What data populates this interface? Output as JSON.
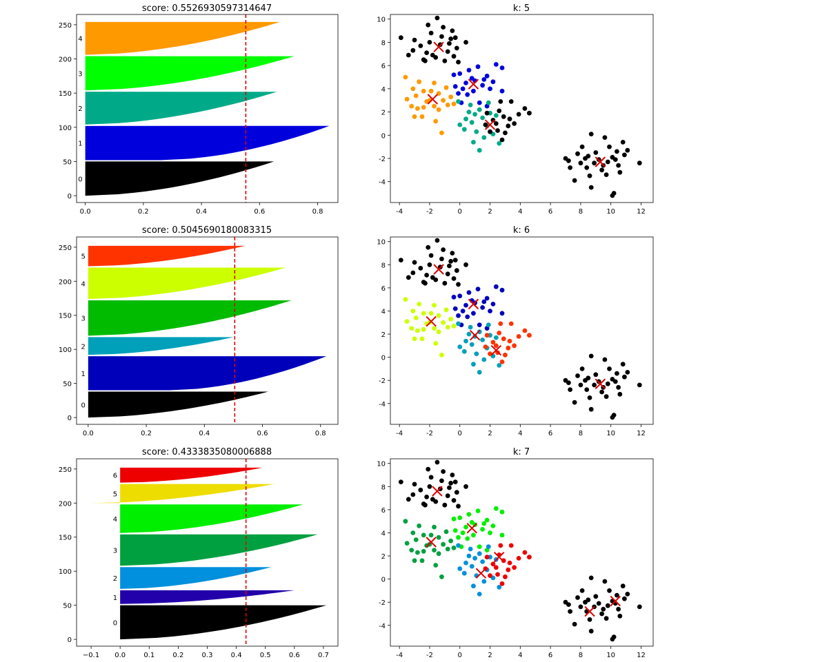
{
  "colors": {
    "k5": [
      "#000000",
      "#0000dd",
      "#00aa88",
      "#00ff00",
      "#ff9900"
    ],
    "k6": [
      "#000000",
      "#0000bb",
      "#00a0bb",
      "#00bb00",
      "#ccff00",
      "#ff3300"
    ],
    "k7": [
      "#000000",
      "#2200aa",
      "#0090dd",
      "#00a040",
      "#00ee00",
      "#eedd00",
      "#ee0000"
    ],
    "centroid": "#dd0000",
    "threshold": "#dd0000"
  },
  "chart_data": [
    {
      "type": "silhouette",
      "title": "score: 0.5526930597314647",
      "score": 0.5526930597314647,
      "xlim": [
        -0.03,
        0.87
      ],
      "ylim": [
        -10,
        265
      ],
      "xticks": [
        "0.0",
        "0.2",
        "0.4",
        "0.6",
        "0.8"
      ],
      "yticks": [
        "0",
        "50",
        "100",
        "150",
        "200",
        "250"
      ],
      "clusters": [
        {
          "label": "0",
          "start": 0,
          "size": 50,
          "max": 0.65,
          "min": 0.0
        },
        {
          "label": "1",
          "start": 52,
          "size": 50,
          "max": 0.84,
          "min": 0.26
        },
        {
          "label": "2",
          "start": 104,
          "size": 48,
          "max": 0.66,
          "min": 0.0
        },
        {
          "label": "3",
          "start": 154,
          "size": 50,
          "max": 0.72,
          "min": 0.0
        },
        {
          "label": "4",
          "start": 206,
          "size": 48,
          "max": 0.67,
          "min": 0.0
        }
      ]
    },
    {
      "type": "scatter",
      "title": "k: 5",
      "k": 5,
      "xlim": [
        -4.6,
        12.8
      ],
      "ylim": [
        -5.8,
        10.4
      ],
      "xticks": [
        "-4",
        "-2",
        "0",
        "2",
        "4",
        "6",
        "8",
        "10",
        "12"
      ],
      "yticks": [
        "-4",
        "-2",
        "0",
        "2",
        "4",
        "6",
        "8",
        "10"
      ],
      "centroids": [
        [
          0.9,
          4.4
        ],
        [
          9.3,
          -2.3
        ],
        [
          2.0,
          0.9
        ],
        [
          -1.4,
          7.6
        ],
        [
          -1.8,
          3.1
        ]
      ]
    },
    {
      "type": "silhouette",
      "title": "score: 0.5045690180083315",
      "score": 0.5045690180083315,
      "xlim": [
        -0.04,
        0.86
      ],
      "ylim": [
        -10,
        265
      ],
      "xticks": [
        "0.0",
        "0.2",
        "0.4",
        "0.6",
        "0.8"
      ],
      "yticks": [
        "0",
        "50",
        "100",
        "150",
        "200",
        "250"
      ],
      "clusters": [
        {
          "label": "0",
          "start": 0,
          "size": 38,
          "max": 0.62,
          "min": 0.0
        },
        {
          "label": "1",
          "start": 40,
          "size": 50,
          "max": 0.82,
          "min": 0.28
        },
        {
          "label": "2",
          "start": 92,
          "size": 26,
          "max": 0.5,
          "min": 0.0
        },
        {
          "label": "3",
          "start": 120,
          "size": 52,
          "max": 0.7,
          "min": 0.0
        },
        {
          "label": "4",
          "start": 174,
          "size": 46,
          "max": 0.68,
          "min": 0.0
        },
        {
          "label": "5",
          "start": 222,
          "size": 30,
          "max": 0.54,
          "min": 0.0
        }
      ]
    },
    {
      "type": "scatter",
      "title": "k: 6",
      "k": 6,
      "xlim": [
        -4.6,
        12.8
      ],
      "ylim": [
        -5.8,
        10.4
      ],
      "xticks": [
        "-4",
        "-2",
        "0",
        "2",
        "4",
        "6",
        "8",
        "10",
        "12"
      ],
      "yticks": [
        "-4",
        "-2",
        "0",
        "2",
        "4",
        "6",
        "8",
        "10"
      ],
      "centroids": [
        [
          0.9,
          4.6
        ],
        [
          9.3,
          -2.3
        ],
        [
          1.0,
          1.9
        ],
        [
          -1.4,
          7.6
        ],
        [
          -1.9,
          3.1
        ],
        [
          2.4,
          0.6
        ]
      ]
    },
    {
      "type": "silhouette",
      "title": "score: 0.4333835080006888",
      "score": 0.4333835080006888,
      "xlim": [
        -0.15,
        0.75
      ],
      "ylim": [
        -10,
        265
      ],
      "xticks": [
        "−0.1",
        "0.0",
        "0.1",
        "0.2",
        "0.3",
        "0.4",
        "0.5",
        "0.6",
        "0.7"
      ],
      "yticks": [
        "0",
        "50",
        "100",
        "150",
        "200",
        "250"
      ],
      "clusters": [
        {
          "label": "0",
          "start": 0,
          "size": 50,
          "max": 0.71,
          "min": 0.0
        },
        {
          "label": "1",
          "start": 52,
          "size": 20,
          "max": 0.6,
          "min": 0.0
        },
        {
          "label": "2",
          "start": 74,
          "size": 32,
          "max": 0.52,
          "min": 0.0
        },
        {
          "label": "3",
          "start": 108,
          "size": 46,
          "max": 0.68,
          "min": 0.0
        },
        {
          "label": "4",
          "start": 156,
          "size": 42,
          "max": 0.63,
          "min": 0.0
        },
        {
          "label": "5",
          "start": 200,
          "size": 28,
          "max": 0.53,
          "min": -0.1
        },
        {
          "label": "6",
          "start": 230,
          "size": 22,
          "max": 0.49,
          "min": 0.0
        }
      ]
    },
    {
      "type": "scatter",
      "title": "k: 7",
      "k": 7,
      "xlim": [
        -4.6,
        12.8
      ],
      "ylim": [
        -5.8,
        10.4
      ],
      "xticks": [
        "-4",
        "-2",
        "0",
        "2",
        "4",
        "6",
        "8",
        "10",
        "12"
      ],
      "yticks": [
        "-4",
        "-2",
        "0",
        "2",
        "4",
        "6",
        "8",
        "10"
      ],
      "centroids": [
        [
          -1.5,
          7.6
        ],
        [
          10.3,
          -1.9
        ],
        [
          1.4,
          0.5
        ],
        [
          -1.9,
          3.2
        ],
        [
          0.8,
          4.4
        ],
        [
          8.6,
          -2.8
        ],
        [
          2.6,
          1.9
        ]
      ]
    }
  ],
  "points": [
    [
      -3.9,
      8.4,
      0,
      0,
      0
    ],
    [
      -3.0,
      8.2,
      0,
      0,
      0
    ],
    [
      -3.1,
      7.3,
      0,
      0,
      0
    ],
    [
      -2.6,
      7.7,
      0,
      0,
      0
    ],
    [
      -2.1,
      9.5,
      0,
      0,
      0
    ],
    [
      -1.5,
      10.1,
      0,
      0,
      0
    ],
    [
      -1.1,
      9.3,
      0,
      0,
      0
    ],
    [
      -0.5,
      9.0,
      0,
      0,
      0
    ],
    [
      -0.3,
      8.4,
      0,
      0,
      0
    ],
    [
      0.4,
      8.0,
      0,
      0,
      0
    ],
    [
      -2.2,
      7.1,
      0,
      0,
      0
    ],
    [
      -1.8,
      6.9,
      0,
      0,
      0
    ],
    [
      -1.3,
      7.8,
      0,
      0,
      0
    ],
    [
      -0.8,
      7.2,
      0,
      0,
      0
    ],
    [
      -0.4,
      6.8,
      0,
      0,
      0
    ],
    [
      -1.9,
      8.8,
      0,
      0,
      0
    ],
    [
      -2.4,
      6.5,
      0,
      0,
      0
    ],
    [
      -1.0,
      6.4,
      0,
      0,
      0
    ],
    [
      -0.2,
      7.5,
      0,
      0,
      0
    ],
    [
      -3.4,
      6.9,
      0,
      0,
      0
    ],
    [
      -1.6,
      6.7,
      0,
      0,
      0
    ],
    [
      -0.6,
      8.3,
      0,
      0,
      0
    ],
    [
      -2.0,
      8.0,
      0,
      0,
      0
    ],
    [
      -1.2,
      8.5,
      0,
      0,
      0
    ],
    [
      -0.1,
      6.3,
      0,
      0,
      0
    ],
    [
      -2.3,
      6.4,
      0,
      0,
      0
    ],
    [
      -0.7,
      7.9,
      0,
      0,
      0
    ],
    [
      -0.4,
      5.2,
      1,
      1,
      4
    ],
    [
      0.0,
      5.3,
      1,
      1,
      4
    ],
    [
      0.6,
      5.6,
      1,
      1,
      4
    ],
    [
      1.2,
      5.9,
      1,
      1,
      4
    ],
    [
      2.4,
      6.1,
      1,
      1,
      4
    ],
    [
      2.8,
      5.8,
      1,
      1,
      4
    ],
    [
      1.8,
      5.1,
      1,
      1,
      4
    ],
    [
      0.2,
      4.0,
      1,
      1,
      4
    ],
    [
      0.5,
      3.5,
      1,
      1,
      4
    ],
    [
      1.0,
      4.7,
      1,
      1,
      4
    ],
    [
      1.5,
      4.3,
      1,
      1,
      4
    ],
    [
      2.0,
      4.0,
      1,
      1,
      4
    ],
    [
      2.8,
      3.8,
      1,
      1,
      4
    ],
    [
      0.1,
      2.8,
      1,
      1,
      4
    ],
    [
      1.3,
      2.8,
      1,
      1,
      4
    ],
    [
      1.8,
      2.5,
      1,
      1,
      4
    ],
    [
      0.8,
      4.9,
      1,
      1,
      4
    ],
    [
      -0.3,
      4.2,
      1,
      1,
      4
    ],
    [
      0.4,
      4.5,
      1,
      1,
      4
    ],
    [
      1.6,
      4.8,
      1,
      1,
      4
    ],
    [
      2.2,
      4.6,
      1,
      1,
      4
    ],
    [
      0.9,
      3.8,
      1,
      1,
      4
    ],
    [
      -0.1,
      3.6,
      1,
      1,
      4
    ],
    [
      -3.6,
      5.0,
      4,
      4,
      3
    ],
    [
      -3.1,
      4.0,
      4,
      4,
      3
    ],
    [
      -2.9,
      3.4,
      4,
      4,
      3
    ],
    [
      -2.4,
      3.8,
      4,
      4,
      3
    ],
    [
      -3.2,
      2.5,
      4,
      4,
      3
    ],
    [
      -2.4,
      2.4,
      4,
      4,
      3
    ],
    [
      -1.7,
      2.5,
      4,
      4,
      3
    ],
    [
      -1.4,
      3.6,
      4,
      4,
      3
    ],
    [
      -0.9,
      4.1,
      4,
      4,
      3
    ],
    [
      -0.6,
      3.3,
      4,
      4,
      3
    ],
    [
      -0.8,
      2.6,
      4,
      4,
      3
    ],
    [
      -1.6,
      1.2,
      4,
      4,
      3
    ],
    [
      -2.5,
      1.6,
      4,
      4,
      3
    ],
    [
      -3.0,
      1.6,
      4,
      4,
      3
    ],
    [
      -1.2,
      0.2,
      4,
      4,
      3
    ],
    [
      -2.0,
      3.0,
      4,
      4,
      3
    ],
    [
      -1.7,
      4.5,
      4,
      4,
      3
    ],
    [
      -2.7,
      4.6,
      4,
      4,
      3
    ],
    [
      -3.5,
      3.1,
      4,
      4,
      3
    ],
    [
      -1.1,
      3.0,
      4,
      4,
      3
    ],
    [
      -2.2,
      2.9,
      4,
      4,
      3
    ],
    [
      -0.4,
      2.7,
      4,
      4,
      3
    ],
    [
      -1.9,
      3.8,
      4,
      4,
      3
    ],
    [
      -1.4,
      2.2,
      4,
      4,
      3
    ],
    [
      -2.8,
      2.3,
      4,
      4,
      3
    ],
    [
      0.0,
      0.9,
      2,
      2,
      2
    ],
    [
      0.4,
      1.4,
      2,
      2,
      2
    ],
    [
      0.8,
      1.1,
      2,
      2,
      2
    ],
    [
      0.9,
      -0.6,
      2,
      2,
      2
    ],
    [
      1.3,
      -1.3,
      2,
      2,
      2
    ],
    [
      1.6,
      -0.2,
      2,
      2,
      2
    ],
    [
      1.8,
      0.8,
      2,
      2,
      2
    ],
    [
      2.2,
      0.1,
      2,
      2,
      2
    ],
    [
      2.6,
      -0.7,
      2,
      2,
      2
    ],
    [
      1.1,
      0.3,
      2,
      2,
      2
    ],
    [
      0.6,
      2.0,
      2,
      2,
      2
    ],
    [
      1.3,
      2.2,
      2,
      2,
      2
    ],
    [
      1.5,
      1.5,
      2,
      2,
      2
    ],
    [
      2.4,
      1.7,
      2,
      2,
      2
    ],
    [
      -0.1,
      2.9,
      2,
      2,
      2
    ],
    [
      0.7,
      2.6,
      2,
      2,
      2
    ],
    [
      1.9,
      2.8,
      2,
      2,
      2
    ],
    [
      2.0,
      1.9,
      2,
      2,
      2
    ],
    [
      1.0,
      1.8,
      2,
      2,
      2
    ],
    [
      0.3,
      0.5,
      2,
      2,
      2
    ],
    [
      1.7,
      0.9,
      5,
      5,
      6
    ],
    [
      2.2,
      1.3,
      5,
      5,
      6
    ],
    [
      2.6,
      2.1,
      5,
      5,
      6
    ],
    [
      2.9,
      1.6,
      5,
      5,
      6
    ],
    [
      3.2,
      0.8,
      5,
      5,
      6
    ],
    [
      3.0,
      0.2,
      5,
      5,
      6
    ],
    [
      2.5,
      0.4,
      5,
      5,
      6
    ],
    [
      2.0,
      0.3,
      5,
      5,
      6
    ],
    [
      2.8,
      -0.4,
      5,
      5,
      6
    ],
    [
      3.3,
      1.4,
      5,
      5,
      6
    ],
    [
      3.6,
      1.0,
      5,
      5,
      6
    ],
    [
      4.3,
      2.3,
      5,
      5,
      6
    ],
    [
      4.6,
      1.9,
      5,
      5,
      6
    ],
    [
      3.9,
      1.8,
      5,
      5,
      6
    ],
    [
      3.4,
      2.9,
      5,
      5,
      6
    ],
    [
      2.7,
      2.9,
      5,
      5,
      6
    ],
    [
      1.8,
      1.9,
      5,
      5,
      6
    ],
    [
      2.4,
      1.0,
      5,
      5,
      6
    ],
    [
      7.0,
      -2.0,
      6,
      6,
      9
    ],
    [
      7.3,
      -2.8,
      6,
      6,
      9
    ],
    [
      7.6,
      -3.9,
      6,
      6,
      9
    ],
    [
      8.0,
      -2.4,
      6,
      6,
      9
    ],
    [
      8.3,
      -2.0,
      6,
      6,
      9
    ],
    [
      8.1,
      -1.0,
      6,
      6,
      9
    ],
    [
      8.6,
      -3.5,
      6,
      6,
      9
    ],
    [
      8.7,
      -4.5,
      6,
      6,
      9
    ],
    [
      8.9,
      -2.4,
      6,
      6,
      9
    ],
    [
      9.2,
      -2.1,
      6,
      6,
      9
    ],
    [
      9.4,
      -3.0,
      6,
      6,
      9
    ],
    [
      9.0,
      -1.5,
      6,
      6,
      9
    ],
    [
      8.7,
      0.1,
      6,
      6,
      9
    ],
    [
      7.8,
      -1.6,
      6,
      6,
      9
    ],
    [
      8.4,
      -2.8,
      6,
      6,
      9
    ],
    [
      7.2,
      -2.2,
      6,
      6,
      9
    ],
    [
      8.5,
      -1.8,
      6,
      6,
      9
    ],
    [
      9.6,
      -0.2,
      6,
      6,
      8
    ],
    [
      9.8,
      -2.3,
      6,
      6,
      8
    ],
    [
      10.1,
      -1.9,
      6,
      6,
      8
    ],
    [
      10.4,
      -1.4,
      6,
      6,
      8
    ],
    [
      10.8,
      -0.6,
      6,
      6,
      8
    ],
    [
      10.9,
      -1.7,
      6,
      6,
      8
    ],
    [
      11.1,
      -1.3,
      6,
      6,
      8
    ],
    [
      10.6,
      -3.2,
      6,
      6,
      8
    ],
    [
      10.2,
      -5.0,
      6,
      6,
      8
    ],
    [
      10.1,
      -5.2,
      6,
      6,
      8
    ],
    [
      9.7,
      -3.4,
      6,
      6,
      8
    ],
    [
      11.9,
      -2.4,
      6,
      6,
      8
    ],
    [
      10.5,
      -2.6,
      6,
      6,
      8
    ],
    [
      9.9,
      -1.0,
      6,
      6,
      8
    ],
    [
      10.3,
      -2.1,
      6,
      6,
      8
    ],
    [
      9.5,
      -2.6,
      6,
      6,
      8
    ]
  ]
}
